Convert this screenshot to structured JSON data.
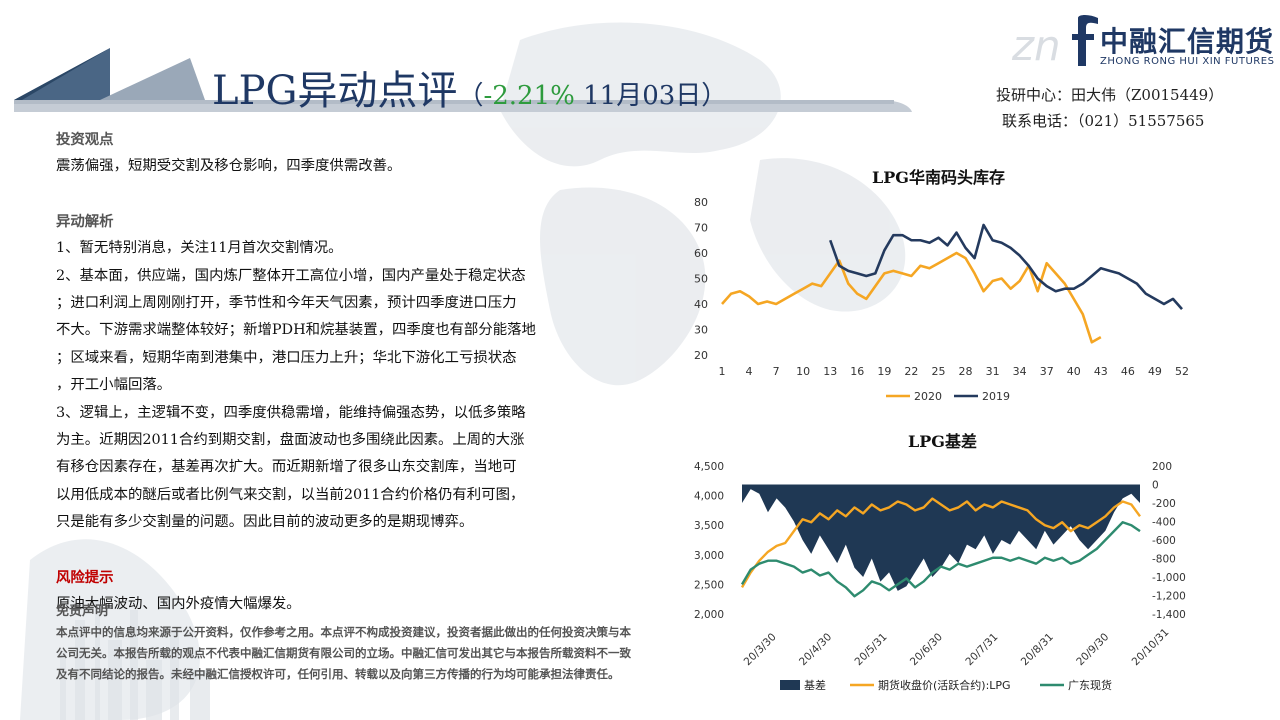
{
  "header": {
    "title": "LPG异动点评",
    "title_sub_open": "（",
    "title_pct": "-2.21%",
    "title_date": " 11月03日）",
    "logo_cn": "中融汇信期货",
    "logo_en": "ZHONG RONG HUI XIN FUTURES",
    "contact_line1": "投研中心：田大伟（Z0015449）",
    "contact_line2": "联系电话：（021）51557565"
  },
  "sections": {
    "view_heading": "投资观点",
    "view_text": "震荡偏强，短期受交割及移仓影响，四季度供需改善。",
    "analysis_heading": "异动解析",
    "analysis_lines": [
      "1、暂无特别消息，关注11月首次交割情况。",
      "2、基本面，供应端，国内炼厂整体开工高位小增，国内产量处于稳定状态",
      "；进口利润上周刚刚打开，季节性和今年天气因素，预计四季度进口压力",
      "不大。下游需求端整体较好；新增PDH和烷基装置，四季度也有部分能落地",
      "；区域来看，短期华南到港集中，港口压力上升；华北下游化工亏损状态",
      "，开工小幅回落。",
      "3、逻辑上，主逻辑不变，四季度供稳需增，能维持偏强态势，以低多策略",
      "为主。近期因2011合约到期交割，盘面波动也多围绕此因素。上周的大涨",
      "有移仓因素存在，基差再次扩大。而近期新增了很多山东交割库，当地可",
      "以用低成本的醚后或者比例气来交割，以当前2011合约价格仍有利可图，",
      "只是能有多少交割量的问题。因此目前的波动更多的是期现博弈。"
    ],
    "risk_heading": "风险提示",
    "risk_text": "原油大幅波动、国内外疫情大幅爆发。",
    "disclaimer_heading": "免责声明",
    "disclaimer_text": "本点评中的信息均来源于公开资料，仅作参考之用。本点评不构成投资建议，投资者据此做出的任何投资决策与本公司无关。本报告所载的观点不代表中融汇信期货有限公司的立场。中融汇信可发出其它与本报告所载资料不一致及有不同结论的报告。未经中融汇信授权许可，任何引用、转载以及向第三方传播的行为均可能承担法律责任。"
  },
  "chart_data": [
    {
      "type": "line",
      "title": "LPG华南码头库存",
      "x_ticks": [
        "1",
        "4",
        "7",
        "10",
        "13",
        "16",
        "19",
        "22",
        "25",
        "28",
        "31",
        "34",
        "37",
        "40",
        "43",
        "46",
        "49",
        "52"
      ],
      "ylim": [
        20,
        80
      ],
      "y_ticks": [
        "20",
        "30",
        "40",
        "50",
        "60",
        "70",
        "80"
      ],
      "legend": [
        "2020",
        "2019"
      ],
      "legend_position": "bottom",
      "grid": false,
      "colors": {
        "2020": "#f5a623",
        "2019": "#243a5e"
      },
      "series": [
        {
          "name": "2020",
          "x": [
            1,
            2,
            3,
            4,
            5,
            6,
            7,
            8,
            9,
            10,
            11,
            12,
            13,
            14,
            15,
            16,
            17,
            18,
            19,
            20,
            21,
            22,
            23,
            24,
            25,
            26,
            27,
            28,
            29,
            30,
            31,
            32,
            33,
            34,
            35,
            36,
            37,
            38,
            39,
            40,
            41,
            42,
            43
          ],
          "values": [
            40,
            44,
            45,
            43,
            40,
            41,
            40,
            42,
            44,
            46,
            48,
            47,
            52,
            57,
            48,
            44,
            42,
            47,
            52,
            53,
            52,
            51,
            55,
            54,
            56,
            58,
            60,
            58,
            52,
            45,
            49,
            50,
            46,
            49,
            55,
            45,
            56,
            52,
            48,
            42,
            36,
            25,
            27
          ]
        },
        {
          "name": "2019",
          "x": [
            13,
            14,
            15,
            16,
            17,
            18,
            19,
            20,
            21,
            22,
            23,
            24,
            25,
            26,
            27,
            28,
            29,
            30,
            31,
            32,
            33,
            34,
            35,
            36,
            37,
            38,
            39,
            40,
            41,
            42,
            43,
            44,
            45,
            46,
            47,
            48,
            49,
            50,
            51,
            52
          ],
          "values": [
            65,
            55,
            53,
            52,
            51,
            52,
            61,
            67,
            67,
            65,
            65,
            64,
            66,
            63,
            68,
            62,
            58,
            71,
            65,
            64,
            62,
            59,
            55,
            50,
            47,
            45,
            46,
            46,
            48,
            51,
            54,
            53,
            52,
            50,
            48,
            44,
            42,
            40,
            42,
            38
          ]
        }
      ]
    },
    {
      "type": "line",
      "title": "LPG基差",
      "x_ticks": [
        "20/3/30",
        "20/4/30",
        "20/5/31",
        "20/6/30",
        "20/7/31",
        "20/8/31",
        "20/9/30",
        "20/10/31"
      ],
      "left_ylim": [
        2000,
        4500
      ],
      "left_ticks": [
        "2,000",
        "2,500",
        "3,000",
        "3,500",
        "4,000",
        "4,500"
      ],
      "right_ylim": [
        -1400,
        200
      ],
      "right_ticks": [
        "-1,400",
        "-1,200",
        "-1,000",
        "-800",
        "-600",
        "-400",
        "-200",
        "0",
        "200"
      ],
      "legend": [
        "基差",
        "期货收盘价(活跃合约):LPG",
        "广东现货"
      ],
      "legend_position": "bottom",
      "grid": false,
      "colors": {
        "基差": "#1f3854",
        "期货收盘价(活跃合约):LPG": "#f5a623",
        "广东现货": "#2e8b6f"
      },
      "series": [
        {
          "name": "基差",
          "axis": "right",
          "type": "area",
          "values": [
            -200,
            -50,
            -100,
            -300,
            -150,
            -250,
            -400,
            -600,
            -750,
            -550,
            -700,
            -850,
            -650,
            -900,
            -1000,
            -800,
            -1050,
            -950,
            -1150,
            -1100,
            -950,
            -800,
            -1000,
            -900,
            -750,
            -850,
            -650,
            -700,
            -550,
            -750,
            -600,
            -650,
            -500,
            -600,
            -700,
            -500,
            -650,
            -550,
            -450,
            -600,
            -700,
            -600,
            -500,
            -300,
            -150,
            -100,
            -200
          ]
        },
        {
          "name": "期货收盘价(活跃合约):LPG",
          "axis": "left",
          "values": [
            2450,
            2700,
            2900,
            3050,
            3150,
            3200,
            3400,
            3600,
            3550,
            3700,
            3600,
            3750,
            3650,
            3800,
            3700,
            3850,
            3750,
            3800,
            3900,
            3850,
            3750,
            3800,
            3950,
            3850,
            3750,
            3800,
            3900,
            3750,
            3850,
            3800,
            3900,
            3850,
            3800,
            3750,
            3600,
            3500,
            3450,
            3550,
            3400,
            3500,
            3450,
            3550,
            3650,
            3800,
            3900,
            3850,
            3650
          ]
        },
        {
          "name": "广东现货",
          "axis": "left",
          "values": [
            2500,
            2750,
            2850,
            2900,
            2900,
            2850,
            2800,
            2700,
            2750,
            2650,
            2700,
            2550,
            2450,
            2300,
            2400,
            2550,
            2500,
            2400,
            2500,
            2600,
            2450,
            2550,
            2700,
            2800,
            2750,
            2850,
            2800,
            2850,
            2900,
            2950,
            2950,
            2900,
            2950,
            2900,
            2850,
            2950,
            2900,
            2950,
            2850,
            2900,
            3000,
            3100,
            3250,
            3400,
            3550,
            3500,
            3400
          ]
        }
      ]
    }
  ]
}
